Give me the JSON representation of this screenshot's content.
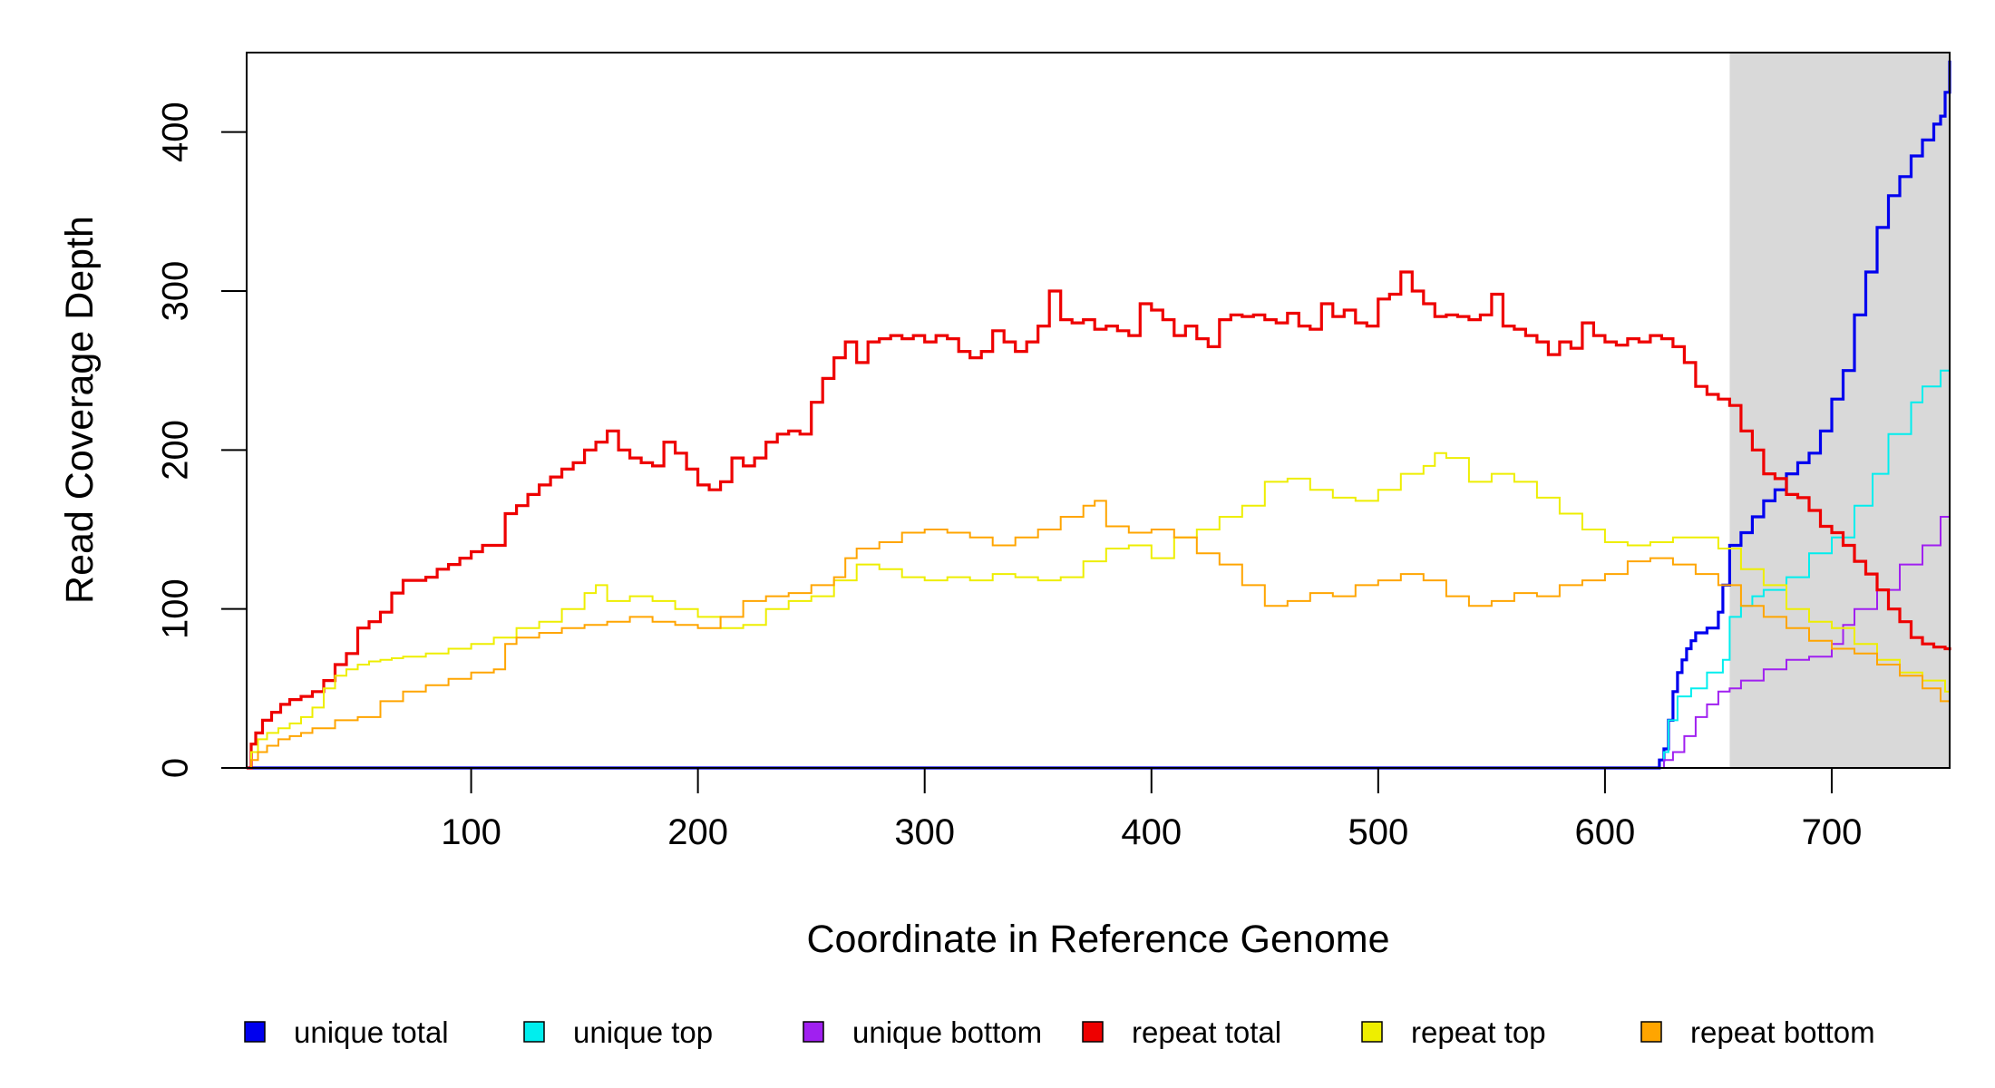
{
  "chart_data": {
    "type": "line",
    "xlabel": "Coordinate in Reference Genome",
    "ylabel": "Read Coverage Depth",
    "xlim": [
      1,
      752
    ],
    "ylim": [
      0,
      450
    ],
    "x_ticks": [
      100,
      200,
      300,
      400,
      500,
      600,
      700
    ],
    "y_ticks": [
      0,
      100,
      200,
      300,
      400
    ],
    "grid": false,
    "legend_position": "bottom",
    "shaded_region": {
      "x_start": 655,
      "x_end": 752,
      "color": "#d9d9d9"
    },
    "series": [
      {
        "name": "unique total",
        "color": "#0000ee",
        "width": 3.2,
        "x": [
          1,
          622,
          624,
          626,
          628,
          630,
          632,
          634,
          636,
          638,
          640,
          645,
          650,
          652,
          655,
          660,
          665,
          670,
          675,
          680,
          685,
          690,
          695,
          700,
          705,
          710,
          715,
          720,
          725,
          730,
          735,
          740,
          745,
          748,
          750,
          752
        ],
        "y": [
          0,
          0,
          5,
          12,
          30,
          48,
          60,
          68,
          75,
          80,
          85,
          88,
          98,
          115,
          140,
          148,
          158,
          168,
          175,
          185,
          192,
          198,
          212,
          232,
          250,
          285,
          312,
          340,
          360,
          372,
          385,
          395,
          405,
          410,
          425,
          445
        ]
      },
      {
        "name": "unique top",
        "color": "#00eeee",
        "width": 2,
        "x": [
          1,
          622,
          626,
          628,
          632,
          638,
          645,
          652,
          655,
          660,
          665,
          670,
          680,
          690,
          700,
          710,
          718,
          725,
          735,
          740,
          748,
          752
        ],
        "y": [
          0,
          0,
          10,
          30,
          45,
          50,
          60,
          68,
          95,
          102,
          108,
          112,
          120,
          135,
          145,
          165,
          185,
          210,
          230,
          240,
          250,
          270
        ]
      },
      {
        "name": "unique bottom",
        "color": "#a020f0",
        "width": 2,
        "x": [
          1,
          622,
          626,
          630,
          635,
          640,
          645,
          650,
          655,
          660,
          670,
          680,
          690,
          700,
          705,
          710,
          720,
          730,
          740,
          748,
          752
        ],
        "y": [
          0,
          0,
          5,
          10,
          20,
          32,
          40,
          48,
          50,
          55,
          62,
          68,
          70,
          78,
          90,
          100,
          112,
          128,
          140,
          158,
          172
        ]
      },
      {
        "name": "repeat total",
        "color": "#ee0000",
        "width": 3.2,
        "x": [
          1,
          3,
          5,
          8,
          12,
          16,
          20,
          25,
          30,
          35,
          40,
          45,
          50,
          55,
          60,
          65,
          70,
          75,
          80,
          85,
          90,
          95,
          100,
          105,
          110,
          115,
          120,
          125,
          130,
          135,
          140,
          145,
          150,
          155,
          160,
          165,
          170,
          175,
          180,
          185,
          190,
          195,
          200,
          205,
          210,
          215,
          220,
          225,
          230,
          235,
          240,
          245,
          250,
          255,
          260,
          265,
          270,
          275,
          280,
          285,
          290,
          295,
          300,
          305,
          310,
          315,
          320,
          325,
          330,
          335,
          340,
          345,
          350,
          355,
          360,
          365,
          370,
          375,
          380,
          385,
          390,
          395,
          400,
          405,
          410,
          415,
          420,
          425,
          430,
          435,
          440,
          445,
          450,
          455,
          460,
          465,
          470,
          475,
          480,
          485,
          490,
          495,
          500,
          505,
          510,
          515,
          520,
          525,
          530,
          535,
          540,
          545,
          550,
          555,
          560,
          565,
          570,
          575,
          580,
          585,
          590,
          595,
          600,
          605,
          610,
          615,
          620,
          625,
          630,
          635,
          640,
          645,
          650,
          655,
          660,
          665,
          670,
          675,
          680,
          685,
          690,
          695,
          700,
          705,
          710,
          715,
          720,
          725,
          730,
          735,
          740,
          745,
          750,
          752
        ],
        "y": [
          0,
          15,
          22,
          30,
          35,
          40,
          43,
          45,
          48,
          55,
          65,
          72,
          88,
          92,
          98,
          110,
          118,
          118,
          120,
          125,
          128,
          132,
          136,
          140,
          140,
          160,
          165,
          172,
          178,
          183,
          188,
          192,
          200,
          205,
          212,
          200,
          195,
          192,
          190,
          205,
          198,
          188,
          178,
          175,
          180,
          195,
          190,
          195,
          205,
          210,
          212,
          210,
          230,
          245,
          258,
          268,
          255,
          268,
          270,
          272,
          270,
          272,
          268,
          272,
          270,
          262,
          258,
          262,
          275,
          268,
          262,
          268,
          278,
          300,
          282,
          280,
          282,
          276,
          278,
          275,
          272,
          292,
          288,
          282,
          272,
          278,
          270,
          265,
          282,
          285,
          284,
          285,
          282,
          280,
          286,
          278,
          276,
          292,
          284,
          288,
          280,
          278,
          295,
          298,
          312,
          300,
          292,
          284,
          285,
          284,
          282,
          285,
          298,
          278,
          276,
          272,
          268,
          260,
          268,
          264,
          280,
          272,
          268,
          266,
          270,
          268,
          272,
          270,
          265,
          255,
          240,
          235,
          232,
          228,
          212,
          200,
          185,
          182,
          172,
          170,
          162,
          152,
          148,
          140,
          130,
          122,
          112,
          100,
          92,
          82,
          78,
          76,
          75,
          74
        ]
      },
      {
        "name": "repeat top",
        "color": "#eeee00",
        "width": 2,
        "x": [
          1,
          3,
          6,
          10,
          15,
          20,
          25,
          30,
          35,
          40,
          45,
          50,
          55,
          60,
          65,
          70,
          80,
          90,
          100,
          110,
          120,
          130,
          140,
          150,
          155,
          160,
          170,
          180,
          190,
          200,
          210,
          220,
          230,
          240,
          250,
          260,
          270,
          280,
          290,
          300,
          310,
          320,
          330,
          340,
          350,
          360,
          370,
          380,
          390,
          400,
          410,
          420,
          430,
          440,
          450,
          460,
          470,
          480,
          490,
          500,
          510,
          520,
          525,
          530,
          540,
          550,
          560,
          570,
          580,
          590,
          600,
          610,
          620,
          630,
          640,
          650,
          660,
          670,
          680,
          690,
          700,
          710,
          720,
          730,
          740,
          750,
          752
        ],
        "y": [
          0,
          10,
          18,
          22,
          25,
          28,
          32,
          38,
          50,
          58,
          62,
          65,
          67,
          68,
          69,
          70,
          72,
          75,
          78,
          82,
          88,
          92,
          100,
          110,
          115,
          105,
          108,
          105,
          100,
          95,
          88,
          90,
          100,
          105,
          108,
          118,
          128,
          125,
          120,
          118,
          120,
          118,
          122,
          120,
          118,
          120,
          130,
          138,
          140,
          132,
          145,
          150,
          158,
          165,
          180,
          182,
          175,
          170,
          168,
          175,
          185,
          190,
          198,
          195,
          180,
          185,
          180,
          170,
          160,
          150,
          142,
          140,
          142,
          145,
          145,
          138,
          125,
          115,
          100,
          92,
          88,
          78,
          68,
          60,
          55,
          48,
          45
        ]
      },
      {
        "name": "repeat bottom",
        "color": "#ffa500",
        "width": 2,
        "x": [
          1,
          3,
          6,
          10,
          15,
          20,
          25,
          30,
          40,
          50,
          60,
          70,
          80,
          90,
          100,
          110,
          115,
          120,
          130,
          140,
          150,
          160,
          170,
          180,
          190,
          200,
          210,
          220,
          230,
          240,
          250,
          260,
          265,
          270,
          280,
          290,
          300,
          310,
          320,
          330,
          340,
          350,
          360,
          370,
          375,
          380,
          390,
          400,
          410,
          420,
          430,
          440,
          450,
          460,
          470,
          480,
          490,
          500,
          510,
          520,
          530,
          540,
          550,
          560,
          570,
          580,
          590,
          600,
          610,
          620,
          630,
          640,
          650,
          660,
          670,
          680,
          690,
          700,
          710,
          720,
          730,
          740,
          748,
          752
        ],
        "y": [
          0,
          5,
          10,
          14,
          18,
          20,
          22,
          25,
          30,
          32,
          42,
          48,
          52,
          56,
          60,
          62,
          78,
          82,
          85,
          88,
          90,
          92,
          95,
          92,
          90,
          88,
          95,
          105,
          108,
          110,
          115,
          120,
          132,
          138,
          142,
          148,
          150,
          148,
          145,
          140,
          145,
          150,
          158,
          165,
          168,
          152,
          148,
          150,
          145,
          135,
          128,
          115,
          102,
          105,
          110,
          108,
          115,
          118,
          122,
          118,
          108,
          102,
          105,
          110,
          108,
          115,
          118,
          122,
          130,
          132,
          128,
          122,
          115,
          102,
          95,
          88,
          80,
          75,
          72,
          65,
          58,
          50,
          42,
          30
        ]
      }
    ]
  }
}
